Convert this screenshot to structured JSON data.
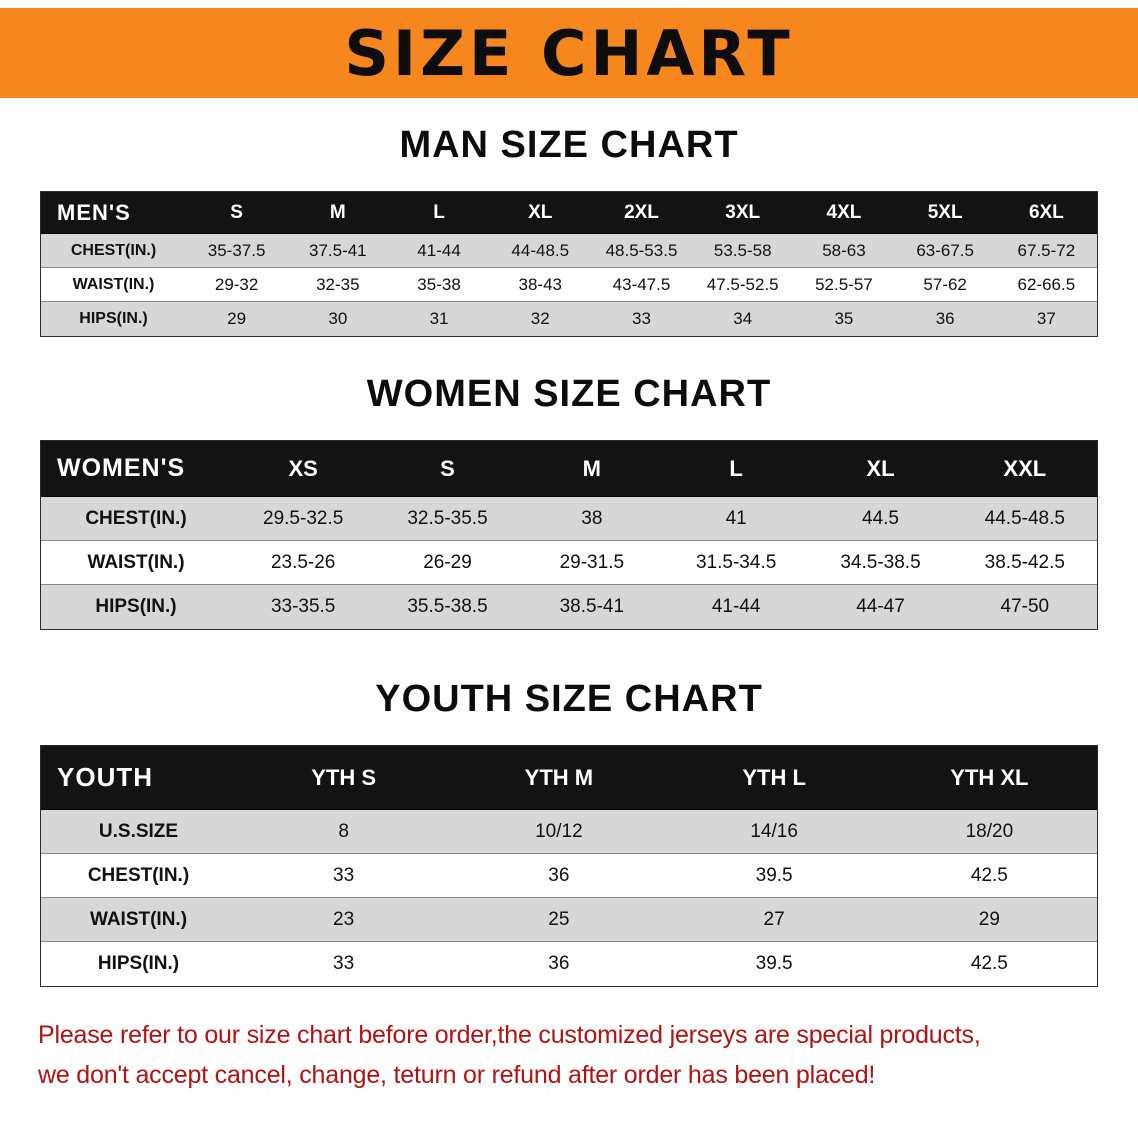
{
  "banner": {
    "title": "SIZE CHART"
  },
  "colors": {
    "banner_bg": "#f6871f",
    "header_bg": "#131313",
    "stripe": "#d7d7d7",
    "notice_text": "#b11212"
  },
  "sections": [
    {
      "heading": "MAN SIZE CHART",
      "table": {
        "header": [
          "MEN'S",
          "S",
          "M",
          "L",
          "XL",
          "2XL",
          "3XL",
          "4XL",
          "5XL",
          "6XL"
        ],
        "rows": [
          [
            "CHEST(IN.)",
            "35-37.5",
            "37.5-41",
            "41-44",
            "44-48.5",
            "48.5-53.5",
            "53.5-58",
            "58-63",
            "63-67.5",
            "67.5-72"
          ],
          [
            "WAIST(IN.)",
            "29-32",
            "32-35",
            "35-38",
            "38-43",
            "43-47.5",
            "47.5-52.5",
            "52.5-57",
            "57-62",
            "62-66.5"
          ],
          [
            "HIPS(IN.)",
            "29",
            "30",
            "31",
            "32",
            "33",
            "34",
            "35",
            "36",
            "37"
          ]
        ]
      }
    },
    {
      "heading": "WOMEN SIZE CHART",
      "table": {
        "header": [
          "WOMEN'S",
          "XS",
          "S",
          "M",
          "L",
          "XL",
          "XXL"
        ],
        "rows": [
          [
            "CHEST(IN.)",
            "29.5-32.5",
            "32.5-35.5",
            "38",
            "41",
            "44.5",
            "44.5-48.5"
          ],
          [
            "WAIST(IN.)",
            "23.5-26",
            "26-29",
            "29-31.5",
            "31.5-34.5",
            "34.5-38.5",
            "38.5-42.5"
          ],
          [
            "HIPS(IN.)",
            "33-35.5",
            "35.5-38.5",
            "38.5-41",
            "41-44",
            "44-47",
            "47-50"
          ]
        ]
      }
    },
    {
      "heading": "YOUTH SIZE CHART",
      "table": {
        "header": [
          "YOUTH",
          "YTH S",
          "YTH M",
          "YTH L",
          "YTH XL"
        ],
        "rows": [
          [
            "U.S.SIZE",
            "8",
            "10/12",
            "14/16",
            "18/20"
          ],
          [
            "CHEST(IN.)",
            "33",
            "36",
            "39.5",
            "42.5"
          ],
          [
            "WAIST(IN.)",
            "23",
            "25",
            "27",
            "29"
          ],
          [
            "HIPS(IN.)",
            "33",
            "36",
            "39.5",
            "42.5"
          ]
        ]
      }
    }
  ],
  "footer": {
    "lines": [
      "Please refer to our size chart before order,the customized jerseys are special products,",
      "we don't accept cancel, change, teturn or refund after order has been placed!"
    ]
  }
}
